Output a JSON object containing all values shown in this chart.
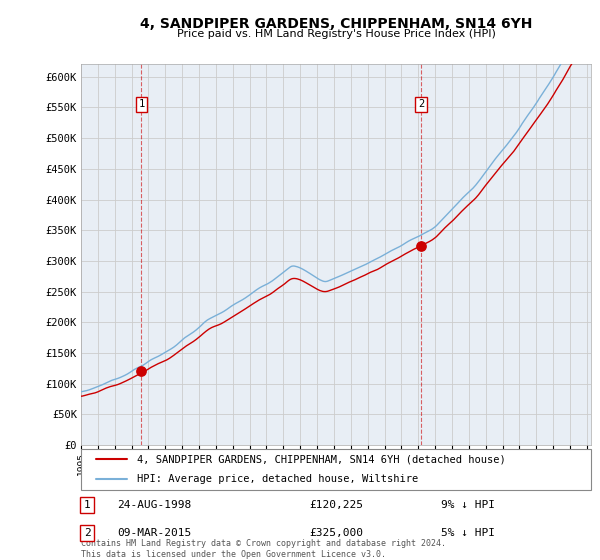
{
  "title": "4, SANDPIPER GARDENS, CHIPPENHAM, SN14 6YH",
  "subtitle": "Price paid vs. HM Land Registry's House Price Index (HPI)",
  "bg_color": "#e8eef5",
  "hpi_color": "#7ab0d8",
  "price_color": "#cc0000",
  "sale1_price": 120225,
  "sale2_price": 325000,
  "sale1_year": 1998,
  "sale1_month": 8,
  "sale2_year": 2015,
  "sale2_month": 3,
  "legend_entry1": "4, SANDPIPER GARDENS, CHIPPENHAM, SN14 6YH (detached house)",
  "legend_entry2": "HPI: Average price, detached house, Wiltshire",
  "table_row1": [
    "1",
    "24-AUG-1998",
    "£120,225",
    "9% ↓ HPI"
  ],
  "table_row2": [
    "2",
    "09-MAR-2015",
    "£325,000",
    "5% ↓ HPI"
  ],
  "footnote": "Contains HM Land Registry data © Crown copyright and database right 2024.\nThis data is licensed under the Open Government Licence v3.0.",
  "ylim": [
    0,
    620000
  ],
  "yticks": [
    0,
    50000,
    100000,
    150000,
    200000,
    250000,
    300000,
    350000,
    400000,
    450000,
    500000,
    550000,
    600000
  ],
  "ytick_labels": [
    "£0",
    "£50K",
    "£100K",
    "£150K",
    "£200K",
    "£250K",
    "£300K",
    "£350K",
    "£400K",
    "£450K",
    "£500K",
    "£550K",
    "£600K"
  ],
  "grid_color": "#cccccc",
  "spine_color": "#aaaaaa"
}
